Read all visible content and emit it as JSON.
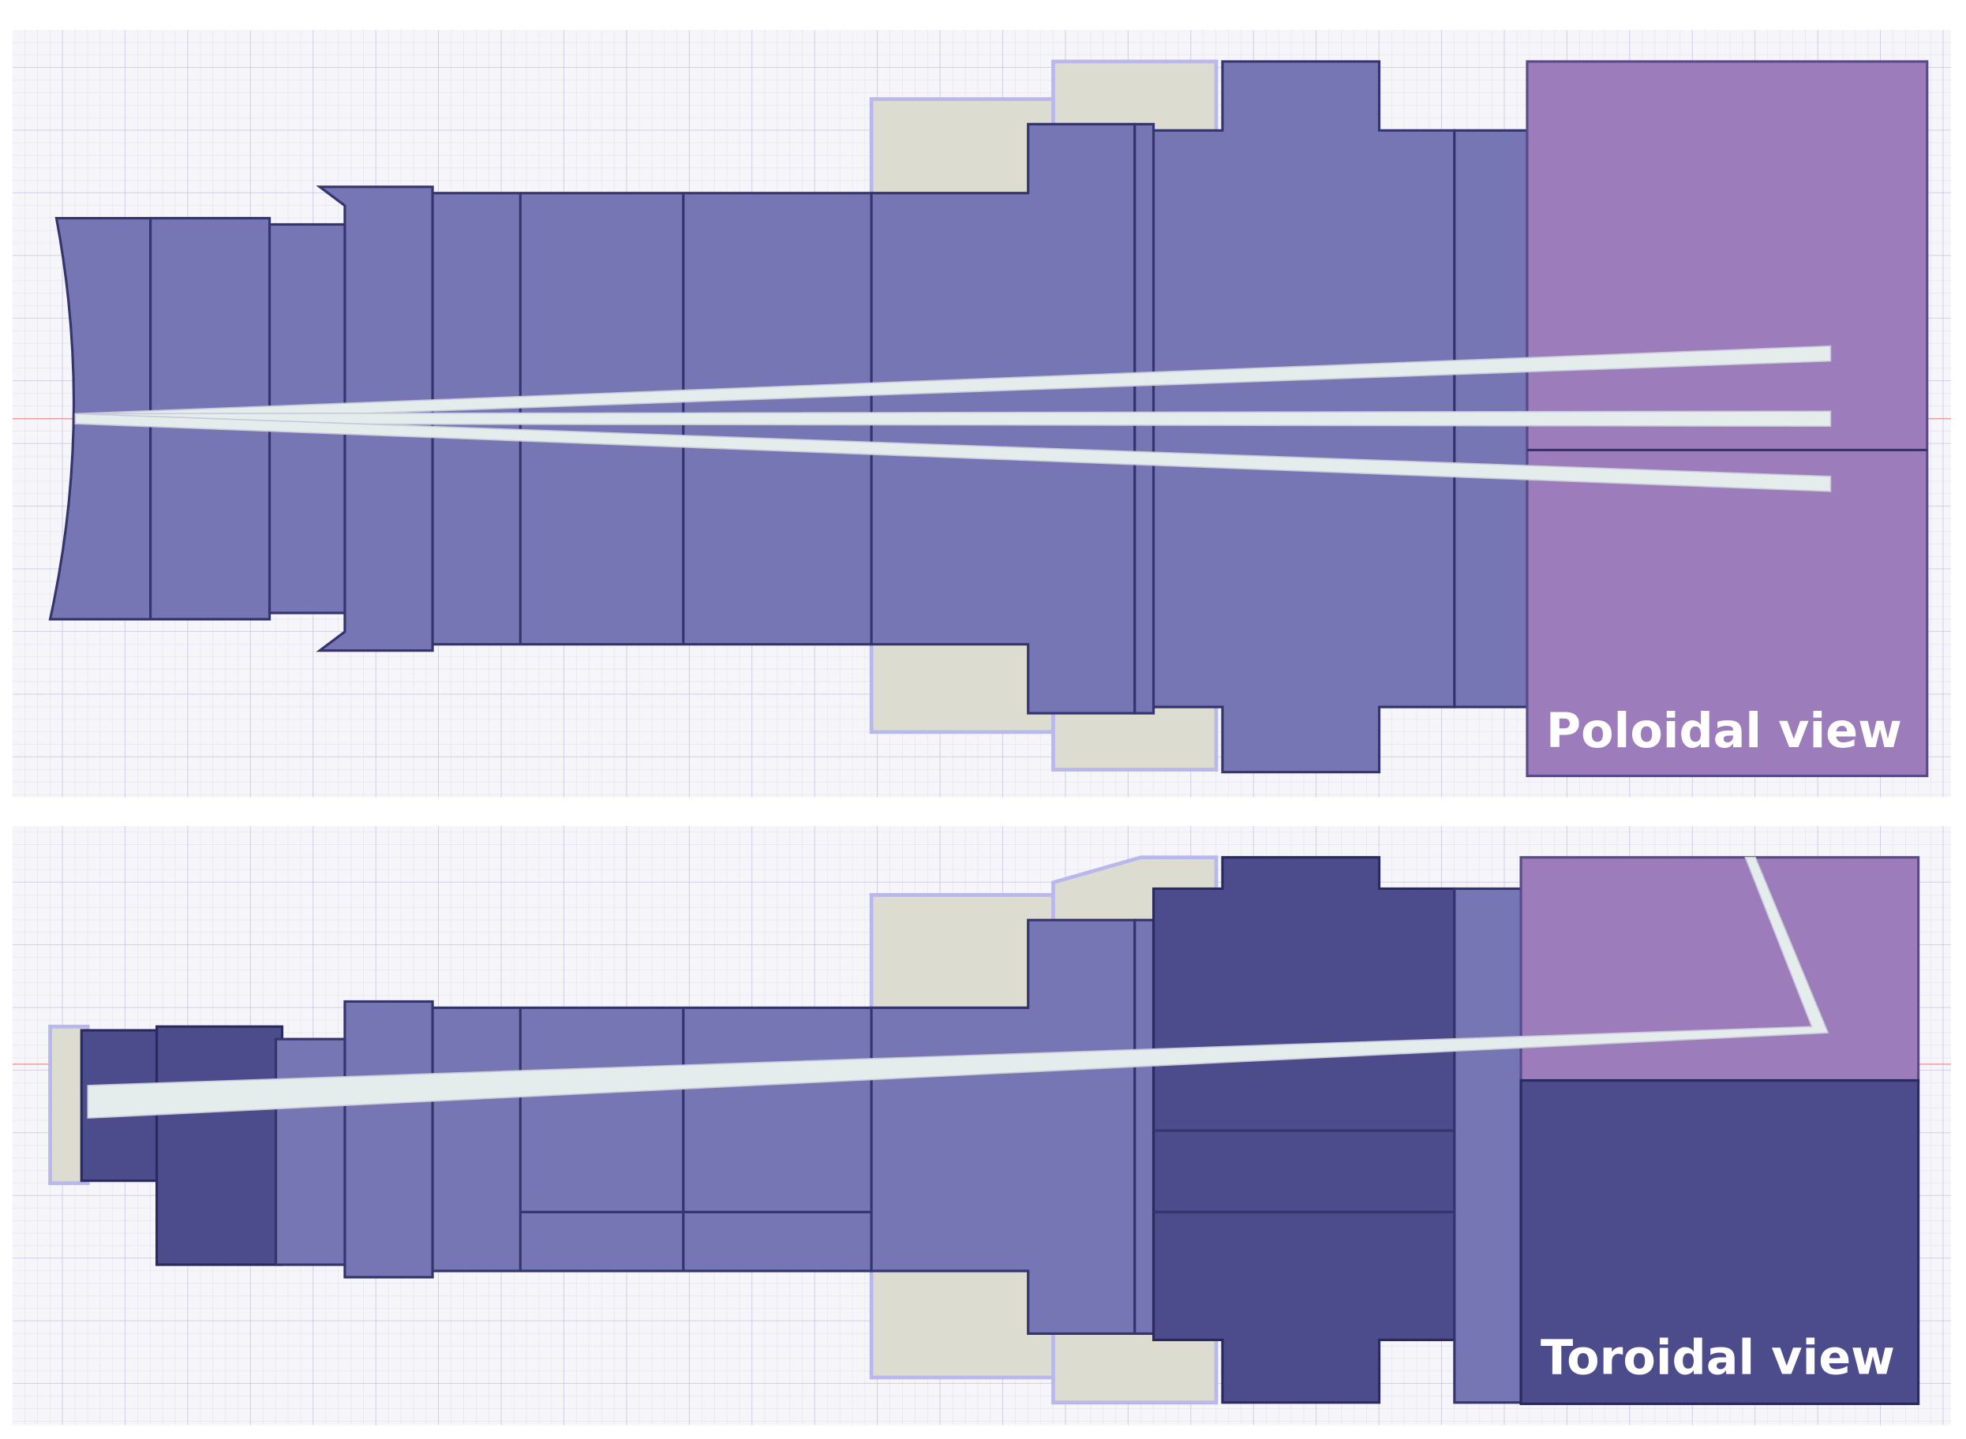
{
  "panels": [
    {
      "label": "Poloidal view"
    },
    {
      "label": "Toroidal view"
    }
  ]
}
